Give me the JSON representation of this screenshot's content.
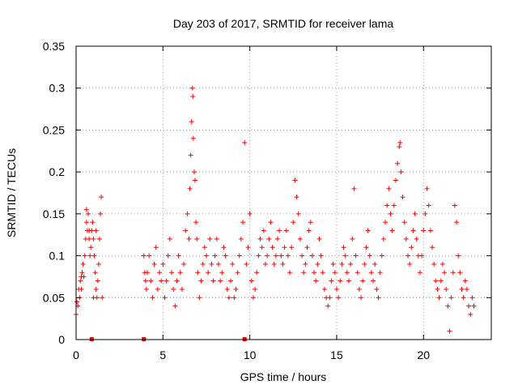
{
  "chart_data": {
    "type": "scatter",
    "title": "Day 203 of 2017, SRMTID for receiver lama",
    "xlabel": "GPS time / hours",
    "ylabel": "SRMTID / TECUs",
    "xlim": [
      0,
      23.9
    ],
    "ylim": [
      0,
      0.35
    ],
    "xticks": [
      0,
      5,
      10,
      15,
      20
    ],
    "xtick_labels": [
      "0",
      "5",
      "10",
      "15",
      "20"
    ],
    "yticks": [
      0,
      0.05,
      0.1,
      0.15,
      0.2,
      0.25,
      0.3,
      0.35
    ],
    "ytick_labels": [
      "0",
      "0.05",
      "0.1",
      "0.15",
      "0.2",
      "0.25",
      "0.3",
      "0.35"
    ],
    "grid": true,
    "marker": "+",
    "series_color": "#ff0000",
    "zero_markers_x": [
      0.9,
      3.9,
      9.7
    ],
    "series": [
      {
        "name": "SRMTID",
        "points": [
          [
            0.0,
            0.03
          ],
          [
            0.05,
            0.045
          ],
          [
            0.1,
            0.04
          ],
          [
            0.15,
            0.06
          ],
          [
            0.2,
            0.05
          ],
          [
            0.25,
            0.07
          ],
          [
            0.3,
            0.06
          ],
          [
            0.35,
            0.08
          ],
          [
            0.4,
            0.09
          ],
          [
            0.45,
            0.075
          ],
          [
            0.5,
            0.1
          ],
          [
            0.55,
            0.12
          ],
          [
            0.6,
            0.14
          ],
          [
            0.65,
            0.13
          ],
          [
            0.7,
            0.15
          ],
          [
            0.75,
            0.12
          ],
          [
            0.8,
            0.1
          ],
          [
            0.85,
            0.11
          ],
          [
            0.9,
            0.13
          ],
          [
            0.95,
            0.14
          ],
          [
            1.0,
            0.12
          ],
          [
            1.05,
            0.1
          ],
          [
            1.1,
            0.08
          ],
          [
            1.15,
            0.06
          ],
          [
            1.2,
            0.05
          ],
          [
            1.25,
            0.07
          ],
          [
            1.3,
            0.09
          ],
          [
            1.35,
            0.12
          ],
          [
            1.4,
            0.15
          ],
          [
            1.45,
            0.17
          ],
          [
            1.5,
            0.05
          ],
          [
            0.6,
            0.155
          ],
          [
            0.3,
            0.075
          ],
          [
            1.0,
            0.05
          ],
          [
            1.15,
            0.13
          ],
          [
            0.75,
            0.13
          ],
          [
            3.9,
            0.1
          ],
          [
            3.95,
            0.08
          ],
          [
            4.0,
            0.07
          ],
          [
            4.05,
            0.06
          ],
          [
            4.1,
            0.08
          ],
          [
            4.2,
            0.1
          ],
          [
            4.3,
            0.07
          ],
          [
            4.4,
            0.05
          ],
          [
            4.5,
            0.09
          ],
          [
            4.6,
            0.11
          ],
          [
            4.7,
            0.06
          ],
          [
            4.8,
            0.08
          ],
          [
            4.9,
            0.07
          ],
          [
            5.0,
            0.09
          ],
          [
            5.1,
            0.05
          ],
          [
            5.2,
            0.07
          ],
          [
            5.3,
            0.1
          ],
          [
            5.4,
            0.12
          ],
          [
            5.5,
            0.08
          ],
          [
            5.6,
            0.06
          ],
          [
            5.7,
            0.04
          ],
          [
            5.8,
            0.07
          ],
          [
            5.9,
            0.1
          ],
          [
            6.0,
            0.08
          ],
          [
            6.1,
            0.06
          ],
          [
            6.2,
            0.09
          ],
          [
            6.3,
            0.13
          ],
          [
            6.4,
            0.15
          ],
          [
            6.5,
            0.12
          ],
          [
            6.55,
            0.18
          ],
          [
            6.6,
            0.22
          ],
          [
            6.65,
            0.26
          ],
          [
            6.7,
            0.3
          ],
          [
            6.72,
            0.29
          ],
          [
            6.75,
            0.24
          ],
          [
            6.8,
            0.2
          ],
          [
            6.85,
            0.19
          ],
          [
            6.9,
            0.14
          ],
          [
            6.95,
            0.12
          ],
          [
            7.0,
            0.08
          ],
          [
            7.1,
            0.05
          ],
          [
            7.2,
            0.07
          ],
          [
            7.3,
            0.09
          ],
          [
            7.4,
            0.11
          ],
          [
            7.5,
            0.1
          ],
          [
            7.6,
            0.08
          ],
          [
            7.7,
            0.12
          ],
          [
            7.8,
            0.09
          ],
          [
            7.9,
            0.07
          ],
          [
            8.0,
            0.1
          ],
          [
            8.1,
            0.12
          ],
          [
            8.2,
            0.09
          ],
          [
            8.3,
            0.07
          ],
          [
            8.4,
            0.08
          ],
          [
            8.5,
            0.11
          ],
          [
            8.6,
            0.1
          ],
          [
            8.7,
            0.06
          ],
          [
            8.8,
            0.05
          ],
          [
            8.9,
            0.07
          ],
          [
            9.0,
            0.09
          ],
          [
            9.1,
            0.05
          ],
          [
            9.2,
            0.06
          ],
          [
            9.3,
            0.08
          ],
          [
            9.4,
            0.1
          ],
          [
            9.5,
            0.12
          ],
          [
            9.6,
            0.14
          ],
          [
            9.7,
            0.235
          ],
          [
            9.8,
            0.09
          ],
          [
            9.9,
            0.11
          ],
          [
            10.0,
            0.15
          ],
          [
            10.1,
            0.07
          ],
          [
            10.2,
            0.05
          ],
          [
            10.3,
            0.06
          ],
          [
            10.4,
            0.08
          ],
          [
            10.5,
            0.1
          ],
          [
            10.6,
            0.12
          ],
          [
            10.7,
            0.11
          ],
          [
            10.8,
            0.13
          ],
          [
            10.9,
            0.09
          ],
          [
            11.0,
            0.1
          ],
          [
            11.1,
            0.12
          ],
          [
            11.2,
            0.14
          ],
          [
            11.3,
            0.11
          ],
          [
            11.4,
            0.09
          ],
          [
            11.5,
            0.1
          ],
          [
            11.6,
            0.12
          ],
          [
            11.7,
            0.13
          ],
          [
            11.8,
            0.1
          ],
          [
            11.9,
            0.09
          ],
          [
            12.0,
            0.11
          ],
          [
            12.1,
            0.13
          ],
          [
            12.2,
            0.1
          ],
          [
            12.3,
            0.08
          ],
          [
            12.4,
            0.11
          ],
          [
            12.5,
            0.14
          ],
          [
            12.6,
            0.19
          ],
          [
            12.7,
            0.17
          ],
          [
            12.8,
            0.15
          ],
          [
            12.9,
            0.12
          ],
          [
            13.0,
            0.1
          ],
          [
            13.1,
            0.08
          ],
          [
            13.2,
            0.09
          ],
          [
            13.3,
            0.11
          ],
          [
            13.4,
            0.13
          ],
          [
            13.5,
            0.14
          ],
          [
            13.6,
            0.1
          ],
          [
            13.7,
            0.08
          ],
          [
            13.8,
            0.07
          ],
          [
            13.9,
            0.09
          ],
          [
            14.0,
            0.12
          ],
          [
            14.1,
            0.1
          ],
          [
            14.2,
            0.08
          ],
          [
            14.3,
            0.06
          ],
          [
            14.4,
            0.05
          ],
          [
            14.5,
            0.04
          ],
          [
            14.6,
            0.05
          ],
          [
            14.7,
            0.07
          ],
          [
            14.8,
            0.09
          ],
          [
            14.9,
            0.08
          ],
          [
            15.0,
            0.06
          ],
          [
            15.1,
            0.05
          ],
          [
            15.2,
            0.07
          ],
          [
            15.3,
            0.09
          ],
          [
            15.4,
            0.11
          ],
          [
            15.5,
            0.1
          ],
          [
            15.6,
            0.08
          ],
          [
            15.7,
            0.07
          ],
          [
            15.8,
            0.09
          ],
          [
            15.9,
            0.12
          ],
          [
            16.0,
            0.18
          ],
          [
            16.1,
            0.1
          ],
          [
            16.2,
            0.08
          ],
          [
            16.3,
            0.06
          ],
          [
            16.4,
            0.05
          ],
          [
            16.5,
            0.07
          ],
          [
            16.6,
            0.09
          ],
          [
            16.7,
            0.11
          ],
          [
            16.8,
            0.13
          ],
          [
            16.9,
            0.1
          ],
          [
            17.0,
            0.08
          ],
          [
            17.1,
            0.07
          ],
          [
            17.2,
            0.09
          ],
          [
            17.3,
            0.06
          ],
          [
            17.4,
            0.05
          ],
          [
            17.5,
            0.08
          ],
          [
            17.6,
            0.1
          ],
          [
            17.7,
            0.12
          ],
          [
            17.8,
            0.14
          ],
          [
            17.9,
            0.16
          ],
          [
            18.0,
            0.18
          ],
          [
            18.1,
            0.15
          ],
          [
            18.2,
            0.13
          ],
          [
            18.3,
            0.16
          ],
          [
            18.4,
            0.19
          ],
          [
            18.5,
            0.21
          ],
          [
            18.6,
            0.23
          ],
          [
            18.65,
            0.235
          ],
          [
            18.7,
            0.2
          ],
          [
            18.8,
            0.17
          ],
          [
            18.9,
            0.14
          ],
          [
            19.0,
            0.12
          ],
          [
            19.1,
            0.1
          ],
          [
            19.2,
            0.09
          ],
          [
            19.3,
            0.11
          ],
          [
            19.4,
            0.13
          ],
          [
            19.5,
            0.15
          ],
          [
            19.6,
            0.12
          ],
          [
            19.7,
            0.1
          ],
          [
            19.8,
            0.08
          ],
          [
            19.9,
            0.1
          ],
          [
            20.0,
            0.13
          ],
          [
            20.1,
            0.15
          ],
          [
            20.2,
            0.18
          ],
          [
            20.3,
            0.16
          ],
          [
            20.4,
            0.13
          ],
          [
            20.5,
            0.11
          ],
          [
            20.6,
            0.09
          ],
          [
            20.7,
            0.07
          ],
          [
            20.8,
            0.06
          ],
          [
            20.9,
            0.05
          ],
          [
            21.0,
            0.07
          ],
          [
            21.1,
            0.09
          ],
          [
            21.2,
            0.08
          ],
          [
            21.3,
            0.06
          ],
          [
            21.4,
            0.04
          ],
          [
            21.5,
            0.01
          ],
          [
            21.6,
            0.05
          ],
          [
            21.7,
            0.08
          ],
          [
            21.8,
            0.16
          ],
          [
            21.9,
            0.14
          ],
          [
            22.0,
            0.1
          ],
          [
            22.1,
            0.08
          ],
          [
            22.2,
            0.06
          ],
          [
            22.3,
            0.05
          ],
          [
            22.4,
            0.07
          ],
          [
            22.5,
            0.06
          ],
          [
            22.6,
            0.04
          ],
          [
            22.7,
            0.03
          ],
          [
            22.8,
            0.05
          ],
          [
            22.9,
            0.04
          ]
        ]
      }
    ]
  }
}
